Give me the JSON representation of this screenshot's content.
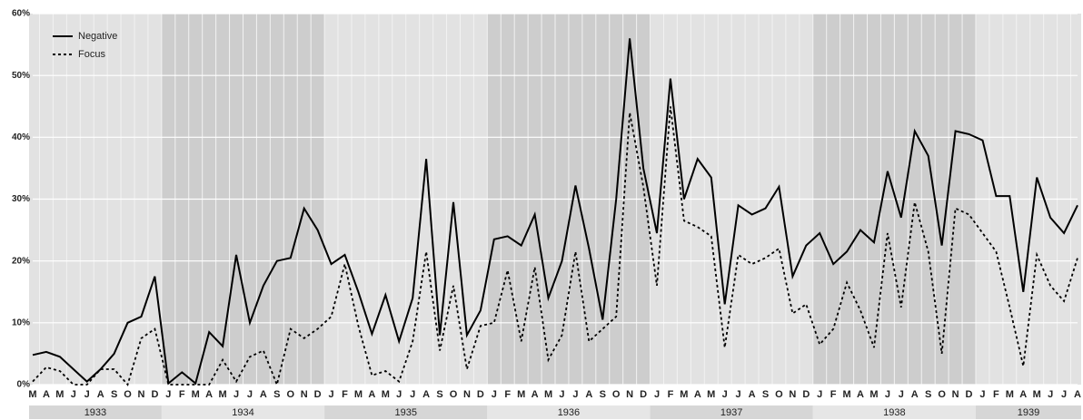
{
  "chart_data": {
    "type": "line",
    "categories": [
      "M",
      "A",
      "M",
      "J",
      "J",
      "A",
      "S",
      "O",
      "N",
      "D",
      "J",
      "F",
      "M",
      "A",
      "M",
      "J",
      "J",
      "A",
      "S",
      "O",
      "N",
      "D",
      "J",
      "F",
      "M",
      "A",
      "M",
      "J",
      "J",
      "A",
      "S",
      "O",
      "N",
      "D",
      "J",
      "F",
      "M",
      "A",
      "M",
      "J",
      "J",
      "A",
      "S",
      "O",
      "N",
      "D",
      "J",
      "F",
      "M",
      "A",
      "M",
      "J",
      "J",
      "A",
      "S",
      "O",
      "N",
      "D",
      "J",
      "F",
      "M",
      "A",
      "M",
      "J",
      "J",
      "A",
      "S",
      "O",
      "N",
      "D",
      "J",
      "F",
      "M",
      "A",
      "M",
      "J",
      "J",
      "A"
    ],
    "years": [
      "1933",
      "1934",
      "1935",
      "1936",
      "1937",
      "1938",
      "1939"
    ],
    "series": [
      {
        "name": "Negative",
        "color": "#000000",
        "style": "solid",
        "values": [
          4.8,
          5.3,
          4.5,
          2.5,
          0.5,
          2.5,
          5,
          10,
          11,
          17.5,
          0.2,
          2,
          0.2,
          8.5,
          6.2,
          21,
          10,
          16,
          20,
          20.5,
          28.5,
          25,
          19.5,
          21,
          15,
          8.2,
          14.5,
          7,
          14,
          36.5,
          8,
          29.5,
          8,
          12,
          23.5,
          24,
          22.5,
          27.5,
          14,
          20,
          32.2,
          22,
          10.5,
          30,
          56,
          35,
          24.5,
          49.5,
          30,
          36.5,
          33.5,
          13,
          29,
          27.5,
          28.5,
          32,
          17.5,
          22.5,
          24.5,
          19.5,
          21.5,
          25,
          23,
          34.5,
          27,
          41,
          37,
          22.5,
          41,
          40.5,
          39.5,
          30.5,
          30.5,
          15,
          33.5,
          27,
          24.5,
          29
        ]
      },
      {
        "name": "Focus",
        "color": "#000000",
        "style": "dashed",
        "values": [
          0.5,
          2.8,
          2.2,
          0,
          0,
          2.5,
          2.5,
          0,
          7.5,
          9,
          0,
          0,
          0,
          0,
          4,
          0.5,
          4.5,
          5.5,
          0,
          9,
          7.5,
          9,
          11,
          19.5,
          9.5,
          1.5,
          2.2,
          0.5,
          7,
          21.5,
          5.5,
          16,
          2.5,
          9.5,
          10,
          18.5,
          7,
          19,
          4,
          8,
          21.5,
          7,
          9,
          11,
          44,
          32,
          16,
          45,
          26.5,
          25.5,
          24,
          6,
          21,
          19.5,
          20.5,
          22,
          11.5,
          13,
          6.5,
          9,
          16.5,
          12,
          6,
          24.5,
          12.5,
          29.5,
          21.5,
          5,
          28.5,
          27.5,
          24.5,
          21.5,
          12.5,
          3,
          21,
          16,
          13.5,
          20.5
        ]
      }
    ],
    "ylim": [
      0,
      60
    ],
    "yticks": [
      {
        "value": 0,
        "label": "0%"
      },
      {
        "value": 10,
        "label": "10%"
      },
      {
        "value": 20,
        "label": "20%"
      },
      {
        "value": 30,
        "label": "30%"
      },
      {
        "value": 40,
        "label": "40%"
      },
      {
        "value": 50,
        "label": "50%"
      },
      {
        "value": 60,
        "label": "60%"
      }
    ],
    "grid": true,
    "legend": "top-left"
  }
}
